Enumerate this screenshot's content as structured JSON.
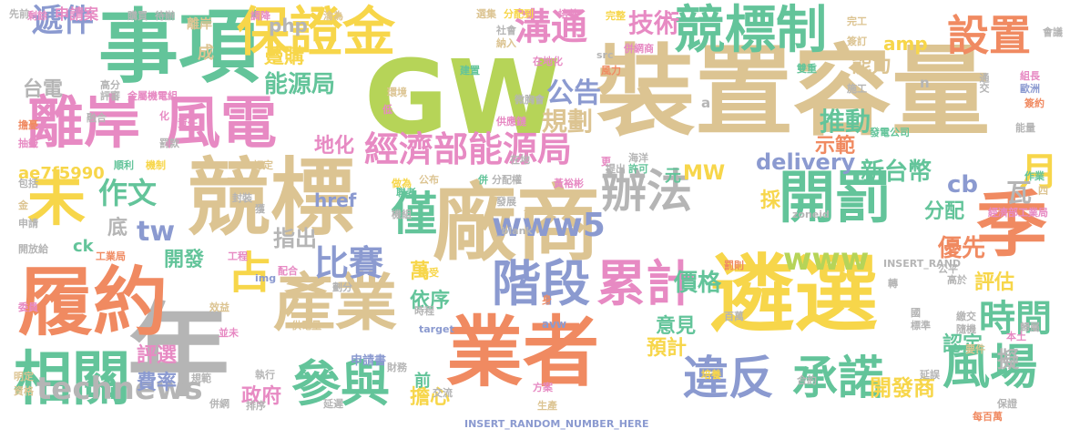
{
  "colors": {
    "background": "#ffffff",
    "tan": "#dcc492",
    "green": "#63c49a",
    "orange": "#f08a61",
    "yellow": "#f7d64a",
    "purple": "#8b9ad0",
    "pink": "#e78ac3",
    "lime": "#b6d458",
    "gray": "#b5b5b5"
  },
  "words": [
    {
      "text": "裝置容量",
      "color": "tan"
    },
    {
      "text": "GW",
      "color": "lime"
    },
    {
      "text": "競標",
      "color": "tan"
    },
    {
      "text": "廠商",
      "color": "tan"
    },
    {
      "text": "遴選",
      "color": "yellow"
    },
    {
      "text": "業者",
      "color": "orange"
    },
    {
      "text": "事項",
      "color": "green"
    },
    {
      "text": "年",
      "color": "gray"
    },
    {
      "text": "履約",
      "color": "orange"
    },
    {
      "text": "產業",
      "color": "tan"
    },
    {
      "text": "離岸",
      "color": "pink"
    },
    {
      "text": "風電",
      "color": "pink"
    },
    {
      "text": "保證金",
      "color": "yellow"
    },
    {
      "text": "競標制",
      "color": "green"
    },
    {
      "text": "開罰",
      "color": "green"
    },
    {
      "text": "季",
      "color": "orange"
    },
    {
      "text": "未",
      "color": "yellow"
    },
    {
      "text": "相關",
      "color": "green"
    },
    {
      "text": "參與",
      "color": "green"
    },
    {
      "text": "階段",
      "color": "purple"
    },
    {
      "text": "累計",
      "color": "pink"
    },
    {
      "text": "經濟部能源局",
      "color": "pink"
    },
    {
      "text": "辦法",
      "color": "gray"
    },
    {
      "text": "僅",
      "color": "green"
    },
    {
      "text": "設置",
      "color": "orange"
    },
    {
      "text": "違反",
      "color": "purple"
    },
    {
      "text": "承諾",
      "color": "green"
    },
    {
      "text": "風場",
      "color": "green"
    },
    {
      "text": "technews",
      "color": "gray"
    },
    {
      "text": "占",
      "color": "yellow"
    },
    {
      "text": "比賽",
      "color": "purple"
    },
    {
      "text": "月",
      "color": "yellow"
    },
    {
      "text": "時間",
      "color": "green"
    },
    {
      "text": "溝通",
      "color": "pink"
    },
    {
      "text": "技術",
      "color": "pink"
    },
    {
      "text": "公告",
      "color": "purple"
    },
    {
      "text": "遞件",
      "color": "purple"
    },
    {
      "text": "作文",
      "color": "green"
    },
    {
      "text": "www5",
      "color": "purple"
    },
    {
      "text": "www",
      "color": "lime"
    },
    {
      "text": "tw",
      "color": "purple"
    },
    {
      "text": "新台幣",
      "color": "green"
    },
    {
      "text": "delivery",
      "color": "purple"
    },
    {
      "text": "政府",
      "color": "pink"
    },
    {
      "text": "規劃",
      "color": "tan"
    },
    {
      "text": "能源局",
      "color": "green"
    },
    {
      "text": "推動",
      "color": "green"
    },
    {
      "text": "價格",
      "color": "green"
    },
    {
      "text": "優先",
      "color": "orange"
    },
    {
      "text": "評選",
      "color": "pink"
    },
    {
      "text": "費率",
      "color": "purple"
    },
    {
      "text": "開發商",
      "color": "yellow"
    },
    {
      "text": "依序",
      "color": "green"
    },
    {
      "text": "意見",
      "color": "green"
    },
    {
      "text": "指出",
      "color": "gray"
    },
    {
      "text": "開發",
      "color": "green"
    },
    {
      "text": "萬",
      "color": "yellow"
    },
    {
      "text": "分配",
      "color": "green"
    },
    {
      "text": "評估",
      "color": "yellow"
    },
    {
      "text": "認定",
      "color": "green"
    },
    {
      "text": "預計",
      "color": "yellow"
    },
    {
      "text": "擔心",
      "color": "yellow"
    },
    {
      "text": "示範",
      "color": "orange"
    },
    {
      "text": "地化",
      "color": "pink"
    },
    {
      "text": "cb",
      "color": "purple"
    },
    {
      "text": "瓦",
      "color": "gray"
    },
    {
      "text": "元",
      "color": "green"
    },
    {
      "text": "MW",
      "color": "yellow"
    },
    {
      "text": "ae7f5990",
      "color": "yellow"
    },
    {
      "text": "台電",
      "color": "gray"
    },
    {
      "text": "底",
      "color": "gray"
    },
    {
      "text": "能力",
      "color": "tan"
    },
    {
      "text": "amp",
      "color": "yellow"
    },
    {
      "text": "php",
      "color": "gray"
    },
    {
      "text": "躉購",
      "color": "yellow"
    },
    {
      "text": "成",
      "color": "tan"
    },
    {
      "text": "前",
      "color": "green"
    },
    {
      "text": "href",
      "color": "purple"
    },
    {
      "text": "申請案",
      "color": "pink"
    },
    {
      "text": "離岸",
      "color": "tan"
    },
    {
      "text": "採",
      "color": "yellow"
    },
    {
      "text": "擬",
      "color": "gray"
    },
    {
      "text": "ck",
      "color": "green"
    },
    {
      "text": "INSERT_RANDOM_NUMBER_HERE",
      "color": "purple"
    },
    {
      "text": "INSERT_RAND",
      "color": "gray"
    },
    {
      "text": "_blank",
      "color": "gray"
    },
    {
      "text": "zoneid",
      "color": "gray"
    },
    {
      "text": "target",
      "color": "purple"
    },
    {
      "text": "avw",
      "color": "purple"
    },
    {
      "text": "img",
      "color": "purple"
    },
    {
      "text": "src",
      "color": "gray"
    },
    {
      "text": "n",
      "color": "gray"
    },
    {
      "text": "a",
      "color": "gray"
    },
    {
      "text": "發電公司",
      "color": "green"
    },
    {
      "text": "經濟部工業局",
      "color": "pink"
    },
    {
      "text": "申請書",
      "color": "purple"
    },
    {
      "text": "每百萬",
      "color": "orange"
    },
    {
      "text": "並未",
      "color": "pink"
    },
    {
      "text": "供電量",
      "color": "tan"
    },
    {
      "text": "剩餘",
      "color": "pink"
    },
    {
      "text": "購買",
      "color": "gray"
    },
    {
      "text": "待辦",
      "color": "gray"
    },
    {
      "text": "調降",
      "color": "pink"
    },
    {
      "text": "淪為",
      "color": "tan"
    },
    {
      "text": "選集",
      "color": "tan"
    },
    {
      "text": "分配到",
      "color": "yellow"
    },
    {
      "text": "培養",
      "color": "pink"
    },
    {
      "text": "完整",
      "color": "yellow"
    },
    {
      "text": "完工",
      "color": "tan"
    },
    {
      "text": "會議",
      "color": "gray"
    },
    {
      "text": "簽訂",
      "color": "tan"
    },
    {
      "text": "社會",
      "color": "gray"
    },
    {
      "text": "納入",
      "color": "tan"
    },
    {
      "text": "併網商",
      "color": "pink"
    },
    {
      "text": "風力",
      "color": "orange"
    },
    {
      "text": "建置",
      "color": "green"
    },
    {
      "text": "在地化",
      "color": "pink"
    },
    {
      "text": "雙重",
      "color": "green"
    },
    {
      "text": "施工",
      "color": "gray"
    },
    {
      "text": "組長",
      "color": "pink"
    },
    {
      "text": "歐洲",
      "color": "purple"
    },
    {
      "text": "簽約",
      "color": "orange"
    },
    {
      "text": "通交",
      "color": "gray"
    },
    {
      "text": "能量",
      "color": "gray"
    },
    {
      "text": "環境",
      "color": "tan"
    },
    {
      "text": "微胸會",
      "color": "gray"
    },
    {
      "text": "高分",
      "color": "gray"
    },
    {
      "text": "評審",
      "color": "gray"
    },
    {
      "text": "金屬機電組",
      "color": "pink"
    },
    {
      "text": "融合",
      "color": "gray"
    },
    {
      "text": "責任",
      "color": "pink"
    },
    {
      "text": "罰款",
      "color": "gray"
    },
    {
      "text": "擔憂",
      "color": "orange"
    },
    {
      "text": "抽籤",
      "color": "pink"
    },
    {
      "text": "化",
      "color": "pink"
    },
    {
      "text": "低",
      "color": "pink"
    },
    {
      "text": "供應鏈",
      "color": "pink"
    },
    {
      "text": "更",
      "color": "pink"
    },
    {
      "text": "提出",
      "color": "gray"
    },
    {
      "text": "許可",
      "color": "green"
    },
    {
      "text": "海洋",
      "color": "gray"
    },
    {
      "text": "順利",
      "color": "green"
    },
    {
      "text": "機制",
      "color": "yellow"
    },
    {
      "text": "訂定",
      "color": "tan"
    },
    {
      "text": "包括",
      "color": "gray"
    },
    {
      "text": "做為",
      "color": "yellow"
    },
    {
      "text": "聯者",
      "color": "green"
    },
    {
      "text": "公布",
      "color": "tan"
    },
    {
      "text": "併",
      "color": "green"
    },
    {
      "text": "分配權",
      "color": "gray"
    },
    {
      "text": "黃裕彬",
      "color": "pink"
    },
    {
      "text": "作業",
      "color": "green"
    },
    {
      "text": "四",
      "color": "tan"
    },
    {
      "text": "金",
      "color": "tan"
    },
    {
      "text": "申請",
      "color": "gray"
    },
    {
      "text": "封裝",
      "color": "gray"
    },
    {
      "text": "獲",
      "color": "gray"
    },
    {
      "text": "機組",
      "color": "gray"
    },
    {
      "text": "發展",
      "color": "gray"
    },
    {
      "text": "商",
      "color": "tan"
    },
    {
      "text": "開放給",
      "color": "gray"
    },
    {
      "text": "工業局",
      "color": "orange"
    },
    {
      "text": "工程",
      "color": "pink"
    },
    {
      "text": "配合",
      "color": "pink"
    },
    {
      "text": "接受",
      "color": "yellow"
    },
    {
      "text": "罰則",
      "color": "orange"
    },
    {
      "text": "公平",
      "color": "gray"
    },
    {
      "text": "高於",
      "color": "gray"
    },
    {
      "text": "轉",
      "color": "gray"
    },
    {
      "text": "委員",
      "color": "pink"
    },
    {
      "text": "劃分",
      "color": "gray"
    },
    {
      "text": "效益",
      "color": "tan"
    },
    {
      "text": "時程",
      "color": "gray"
    },
    {
      "text": "身",
      "color": "orange"
    },
    {
      "text": "國",
      "color": "gray"
    },
    {
      "text": "標準",
      "color": "gray"
    },
    {
      "text": "繳交",
      "color": "gray"
    },
    {
      "text": "隨機",
      "color": "gray"
    },
    {
      "text": "歸屬",
      "color": "gray"
    },
    {
      "text": "本土",
      "color": "pink"
    },
    {
      "text": "要件",
      "color": "tan"
    },
    {
      "text": "執行",
      "color": "gray"
    },
    {
      "text": "財務",
      "color": "gray"
    },
    {
      "text": "明定",
      "color": "tan"
    },
    {
      "text": "規範",
      "color": "gray"
    },
    {
      "text": "交流",
      "color": "gray"
    },
    {
      "text": "方案",
      "color": "pink"
    },
    {
      "text": "生產",
      "color": "tan"
    },
    {
      "text": "培養",
      "color": "yellow"
    },
    {
      "text": "合約",
      "color": "gray"
    },
    {
      "text": "延誤",
      "color": "gray"
    },
    {
      "text": "資格",
      "color": "tan"
    },
    {
      "text": "併網",
      "color": "gray"
    },
    {
      "text": "排序",
      "color": "gray"
    },
    {
      "text": "延遲",
      "color": "gray"
    },
    {
      "text": "保證",
      "color": "gray"
    },
    {
      "text": "百萬",
      "color": "gray"
    },
    {
      "text": "在地",
      "color": "gray"
    },
    {
      "text": "先前",
      "color": "gray"
    }
  ]
}
